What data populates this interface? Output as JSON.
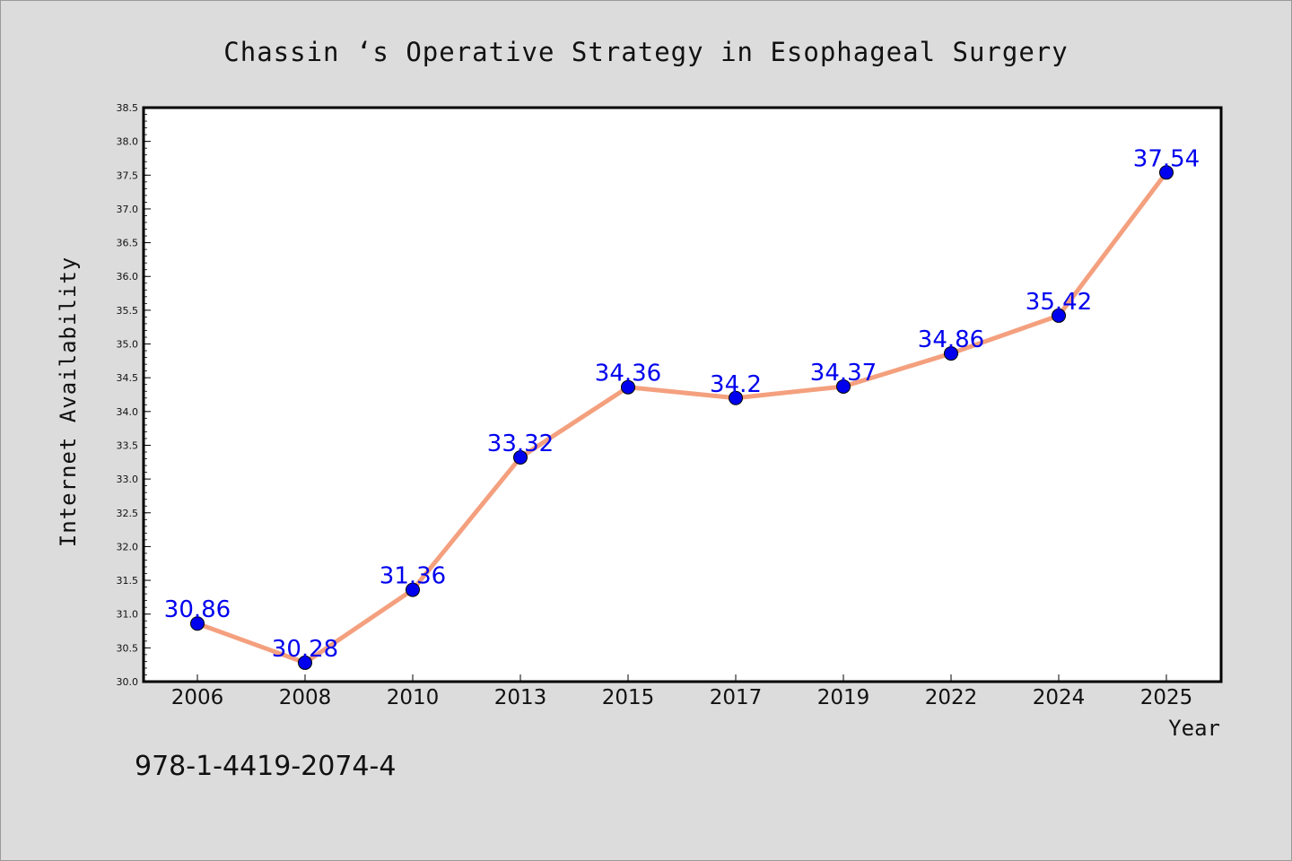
{
  "page": {
    "isbn": "978-1-4419-2074-4"
  },
  "chart_data": {
    "type": "line",
    "title": "Chassin ‘s Operative Strategy in Esophageal Surgery",
    "xlabel": "Year",
    "ylabel": "Internet Availability",
    "categories": [
      "2006",
      "2008",
      "2010",
      "2013",
      "2015",
      "2017",
      "2019",
      "2022",
      "2024",
      "2025"
    ],
    "series": [
      {
        "values": [
          30.86,
          30.28,
          31.36,
          33.32,
          34.36,
          34.2,
          34.37,
          34.86,
          35.42,
          37.54
        ],
        "labels": [
          "30.86",
          "30.28",
          "31.36",
          "33.32",
          "34.36",
          "34.2",
          "34.37",
          "34.86",
          "35.42",
          "37.54"
        ],
        "line_color": "#f4a07e",
        "marker_color": "#0000ee"
      }
    ],
    "ylim": [
      30.0,
      38.5
    ],
    "yticks": [
      "30.0",
      "30.5",
      "31.0",
      "31.5",
      "32.0",
      "32.5",
      "33.0",
      "33.5",
      "34.0",
      "34.5",
      "35.0",
      "35.5",
      "36.0",
      "36.5",
      "37.0",
      "37.5",
      "38.0",
      "38.5"
    ],
    "grid": false,
    "legend": "none",
    "plot_background": "#ffffff",
    "figure_background": "#dcdcdc"
  }
}
